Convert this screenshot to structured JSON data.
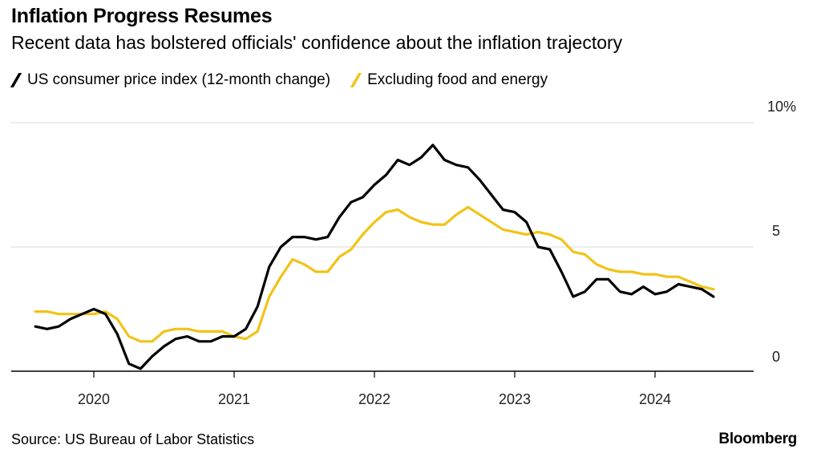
{
  "title": "Inflation Progress Resumes",
  "subtitle": "Recent data has bolstered officials' confidence about the inflation trajectory",
  "source": "Source: US Bureau of Labor Statistics",
  "brand": "Bloomberg",
  "colors": {
    "cpi": "#000000",
    "core": "#f2c318",
    "grid": "#d9d9d9",
    "axis": "#000000"
  },
  "chart_data": {
    "type": "line",
    "x_ticks": [
      "2020",
      "2021",
      "2022",
      "2023",
      "2024"
    ],
    "y_ticks": [
      "10%",
      "5",
      "0"
    ],
    "ylim": [
      0,
      10
    ],
    "xlim": [
      "2019-07",
      "2024-09"
    ],
    "grid": "horizontal",
    "legend_position": "top-left",
    "series": [
      {
        "name": "US consumer price index (12-month change)",
        "color": "#000000",
        "points": [
          [
            "2019-08",
            1.8
          ],
          [
            "2019-09",
            1.7
          ],
          [
            "2019-10",
            1.8
          ],
          [
            "2019-11",
            2.1
          ],
          [
            "2019-12",
            2.3
          ],
          [
            "2020-01",
            2.5
          ],
          [
            "2020-02",
            2.3
          ],
          [
            "2020-03",
            1.5
          ],
          [
            "2020-04",
            0.3
          ],
          [
            "2020-05",
            0.1
          ],
          [
            "2020-06",
            0.6
          ],
          [
            "2020-07",
            1.0
          ],
          [
            "2020-08",
            1.3
          ],
          [
            "2020-09",
            1.4
          ],
          [
            "2020-10",
            1.2
          ],
          [
            "2020-11",
            1.2
          ],
          [
            "2020-12",
            1.4
          ],
          [
            "2021-01",
            1.4
          ],
          [
            "2021-02",
            1.7
          ],
          [
            "2021-03",
            2.6
          ],
          [
            "2021-04",
            4.2
          ],
          [
            "2021-05",
            5.0
          ],
          [
            "2021-06",
            5.4
          ],
          [
            "2021-07",
            5.4
          ],
          [
            "2021-08",
            5.3
          ],
          [
            "2021-09",
            5.4
          ],
          [
            "2021-10",
            6.2
          ],
          [
            "2021-11",
            6.8
          ],
          [
            "2021-12",
            7.0
          ],
          [
            "2022-01",
            7.5
          ],
          [
            "2022-02",
            7.9
          ],
          [
            "2022-03",
            8.5
          ],
          [
            "2022-04",
            8.3
          ],
          [
            "2022-05",
            8.6
          ],
          [
            "2022-06",
            9.1
          ],
          [
            "2022-07",
            8.5
          ],
          [
            "2022-08",
            8.3
          ],
          [
            "2022-09",
            8.2
          ],
          [
            "2022-10",
            7.7
          ],
          [
            "2022-11",
            7.1
          ],
          [
            "2022-12",
            6.5
          ],
          [
            "2023-01",
            6.4
          ],
          [
            "2023-02",
            6.0
          ],
          [
            "2023-03",
            5.0
          ],
          [
            "2023-04",
            4.9
          ],
          [
            "2023-05",
            4.0
          ],
          [
            "2023-06",
            3.0
          ],
          [
            "2023-07",
            3.2
          ],
          [
            "2023-08",
            3.7
          ],
          [
            "2023-09",
            3.7
          ],
          [
            "2023-10",
            3.2
          ],
          [
            "2023-11",
            3.1
          ],
          [
            "2023-12",
            3.4
          ],
          [
            "2024-01",
            3.1
          ],
          [
            "2024-02",
            3.2
          ],
          [
            "2024-03",
            3.5
          ],
          [
            "2024-04",
            3.4
          ],
          [
            "2024-05",
            3.3
          ],
          [
            "2024-06",
            3.0
          ]
        ]
      },
      {
        "name": "Excluding food and energy",
        "color": "#f2c318",
        "points": [
          [
            "2019-08",
            2.4
          ],
          [
            "2019-09",
            2.4
          ],
          [
            "2019-10",
            2.3
          ],
          [
            "2019-11",
            2.3
          ],
          [
            "2019-12",
            2.3
          ],
          [
            "2020-01",
            2.3
          ],
          [
            "2020-02",
            2.4
          ],
          [
            "2020-03",
            2.1
          ],
          [
            "2020-04",
            1.4
          ],
          [
            "2020-05",
            1.2
          ],
          [
            "2020-06",
            1.2
          ],
          [
            "2020-07",
            1.6
          ],
          [
            "2020-08",
            1.7
          ],
          [
            "2020-09",
            1.7
          ],
          [
            "2020-10",
            1.6
          ],
          [
            "2020-11",
            1.6
          ],
          [
            "2020-12",
            1.6
          ],
          [
            "2021-01",
            1.4
          ],
          [
            "2021-02",
            1.3
          ],
          [
            "2021-03",
            1.6
          ],
          [
            "2021-04",
            3.0
          ],
          [
            "2021-05",
            3.8
          ],
          [
            "2021-06",
            4.5
          ],
          [
            "2021-07",
            4.3
          ],
          [
            "2021-08",
            4.0
          ],
          [
            "2021-09",
            4.0
          ],
          [
            "2021-10",
            4.6
          ],
          [
            "2021-11",
            4.9
          ],
          [
            "2021-12",
            5.5
          ],
          [
            "2022-01",
            6.0
          ],
          [
            "2022-02",
            6.4
          ],
          [
            "2022-03",
            6.5
          ],
          [
            "2022-04",
            6.2
          ],
          [
            "2022-05",
            6.0
          ],
          [
            "2022-06",
            5.9
          ],
          [
            "2022-07",
            5.9
          ],
          [
            "2022-08",
            6.3
          ],
          [
            "2022-09",
            6.6
          ],
          [
            "2022-10",
            6.3
          ],
          [
            "2022-11",
            6.0
          ],
          [
            "2022-12",
            5.7
          ],
          [
            "2023-01",
            5.6
          ],
          [
            "2023-02",
            5.5
          ],
          [
            "2023-03",
            5.6
          ],
          [
            "2023-04",
            5.5
          ],
          [
            "2023-05",
            5.3
          ],
          [
            "2023-06",
            4.8
          ],
          [
            "2023-07",
            4.7
          ],
          [
            "2023-08",
            4.3
          ],
          [
            "2023-09",
            4.1
          ],
          [
            "2023-10",
            4.0
          ],
          [
            "2023-11",
            4.0
          ],
          [
            "2023-12",
            3.9
          ],
          [
            "2024-01",
            3.9
          ],
          [
            "2024-02",
            3.8
          ],
          [
            "2024-03",
            3.8
          ],
          [
            "2024-04",
            3.6
          ],
          [
            "2024-05",
            3.4
          ],
          [
            "2024-06",
            3.3
          ]
        ]
      }
    ]
  }
}
